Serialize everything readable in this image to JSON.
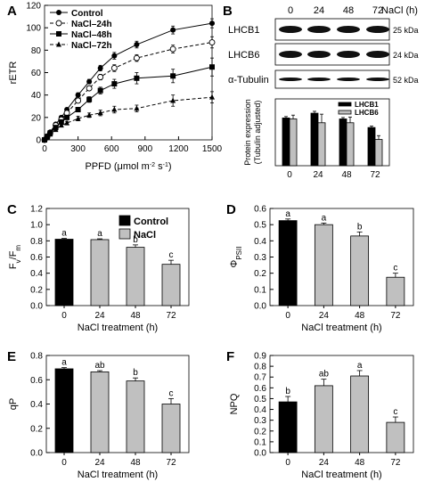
{
  "chart_data": [
    {
      "panel": "A",
      "type": "line",
      "xlabel_main": "PPFD (μmol m",
      "xlabel_sup1": "-2",
      "xlabel_mid": " s",
      "xlabel_sup2": "-1",
      "xlabel_end": ")",
      "ylabel": "rETR",
      "xlim": [
        0,
        1500
      ],
      "ylim": [
        0,
        120
      ],
      "xticks": [
        "0",
        "300",
        "600",
        "900",
        "1200",
        "1500"
      ],
      "yticks": [
        "0",
        "20",
        "40",
        "60",
        "80",
        "100",
        "120"
      ],
      "x": [
        0,
        25,
        50,
        100,
        150,
        200,
        300,
        400,
        500,
        625,
        825,
        1150,
        1500
      ],
      "series": [
        {
          "name": "Control",
          "marker": "filled-circle",
          "dash": "solid",
          "values": [
            0,
            3,
            7,
            14,
            20,
            27,
            40,
            52,
            64,
            75,
            85,
            98,
            104
          ],
          "errors": [
            0,
            0.5,
            0.5,
            1,
            1,
            1.5,
            2,
            2,
            2.5,
            3,
            3,
            3.5,
            4
          ]
        },
        {
          "name": "NaCl–24h",
          "marker": "open-circle",
          "dash": "dashed",
          "values": [
            0,
            3,
            6,
            13,
            18,
            24,
            35,
            46,
            56,
            64,
            73,
            81,
            87
          ],
          "errors": [
            0,
            0.5,
            0.5,
            1,
            1,
            1.5,
            2,
            2,
            2.5,
            3,
            3,
            3.5,
            5
          ]
        },
        {
          "name": "NaCl–48h",
          "marker": "filled-square",
          "dash": "solid",
          "values": [
            0,
            3,
            6,
            11,
            16,
            20,
            27,
            36,
            44,
            50,
            55,
            57,
            65
          ],
          "errors": [
            0,
            0.5,
            0.5,
            1,
            1,
            1.5,
            2,
            2.5,
            3,
            4,
            5,
            6,
            8
          ]
        },
        {
          "name": "NaCl–72h",
          "marker": "filled-triangle",
          "dash": "dashed",
          "values": [
            0,
            2,
            5,
            9,
            13,
            15,
            19,
            22,
            24,
            27,
            28,
            35,
            38
          ],
          "errors": [
            0,
            0.5,
            0.5,
            1,
            1,
            1.5,
            2,
            2,
            2.5,
            3,
            3,
            5,
            5
          ]
        }
      ]
    },
    {
      "panel": "B",
      "type": "bar",
      "header_timepoints": [
        "0",
        "24",
        "48",
        "72"
      ],
      "header_unit": "NaCl (h)",
      "blots": [
        {
          "label": "LHCB1",
          "size": "25 kDa"
        },
        {
          "label": "LHCB6",
          "size": "24 kDa"
        },
        {
          "label": "α-Tubulin",
          "size": "52 kDa"
        }
      ],
      "ylabel_line1": "Protein expression",
      "ylabel_line2": "(Tubulin adjusted)",
      "categories": [
        "0",
        "24",
        "48",
        "72"
      ],
      "ylim": [
        0,
        1.4
      ],
      "series": [
        {
          "name": "LHCB1",
          "color": "#000000",
          "values": [
            1.0,
            1.1,
            0.98,
            0.8
          ],
          "errors": [
            0.03,
            0.04,
            0.03,
            0.03
          ]
        },
        {
          "name": "LHCB6",
          "color": "#c0c0c0",
          "values": [
            0.98,
            0.9,
            0.9,
            0.55
          ],
          "errors": [
            0.08,
            0.18,
            0.12,
            0.08
          ]
        }
      ]
    },
    {
      "panel": "C",
      "type": "bar",
      "ylabel": "Fv/Fm",
      "xlabel": "NaCl treatment (h)",
      "categories": [
        "0",
        "24",
        "48",
        "72"
      ],
      "yticks": [
        "0.0",
        "0.2",
        "0.4",
        "0.6",
        "0.8",
        "1.0",
        "1.2"
      ],
      "ylim": [
        0,
        1.2
      ],
      "values": [
        0.82,
        0.815,
        0.72,
        0.51
      ],
      "errors": [
        0.01,
        0.01,
        0.03,
        0.05
      ],
      "letters": [
        "a",
        "a",
        "b",
        "c"
      ],
      "legend": [
        {
          "name": "Control",
          "color": "#000000"
        },
        {
          "name": "NaCl",
          "color": "#c0c0c0"
        }
      ]
    },
    {
      "panel": "D",
      "type": "bar",
      "ylabel_main": "Φ",
      "ylabel_sub": "PSII",
      "xlabel": "NaCl treatment (h)",
      "categories": [
        "0",
        "24",
        "48",
        "72"
      ],
      "yticks": [
        "0.0",
        "0.1",
        "0.2",
        "0.3",
        "0.4",
        "0.5",
        "0.6"
      ],
      "ylim": [
        0,
        0.6
      ],
      "values": [
        0.525,
        0.5,
        0.43,
        0.175
      ],
      "errors": [
        0.01,
        0.01,
        0.025,
        0.025
      ],
      "letters": [
        "a",
        "a",
        "b",
        "c"
      ]
    },
    {
      "panel": "E",
      "type": "bar",
      "ylabel": "qP",
      "xlabel": "NaCl treatment (h)",
      "categories": [
        "0",
        "24",
        "48",
        "72"
      ],
      "yticks": [
        "0.0",
        "0.2",
        "0.4",
        "0.6",
        "0.8"
      ],
      "ylim": [
        0,
        0.8
      ],
      "values": [
        0.69,
        0.665,
        0.59,
        0.4
      ],
      "errors": [
        0.01,
        0.01,
        0.025,
        0.045
      ],
      "letters": [
        "a",
        "ab",
        "b",
        "c"
      ]
    },
    {
      "panel": "F",
      "type": "bar",
      "ylabel": "NPQ",
      "xlabel": "NaCl treatment (h)",
      "categories": [
        "0",
        "24",
        "48",
        "72"
      ],
      "yticks": [
        "0.0",
        "0.1",
        "0.2",
        "0.3",
        "0.4",
        "0.5",
        "0.6",
        "0.7",
        "0.8",
        "0.9"
      ],
      "ylim": [
        0,
        0.9
      ],
      "values": [
        0.47,
        0.62,
        0.71,
        0.28
      ],
      "errors": [
        0.05,
        0.06,
        0.05,
        0.05
      ],
      "letters": [
        "b",
        "ab",
        "a",
        "c"
      ]
    }
  ]
}
